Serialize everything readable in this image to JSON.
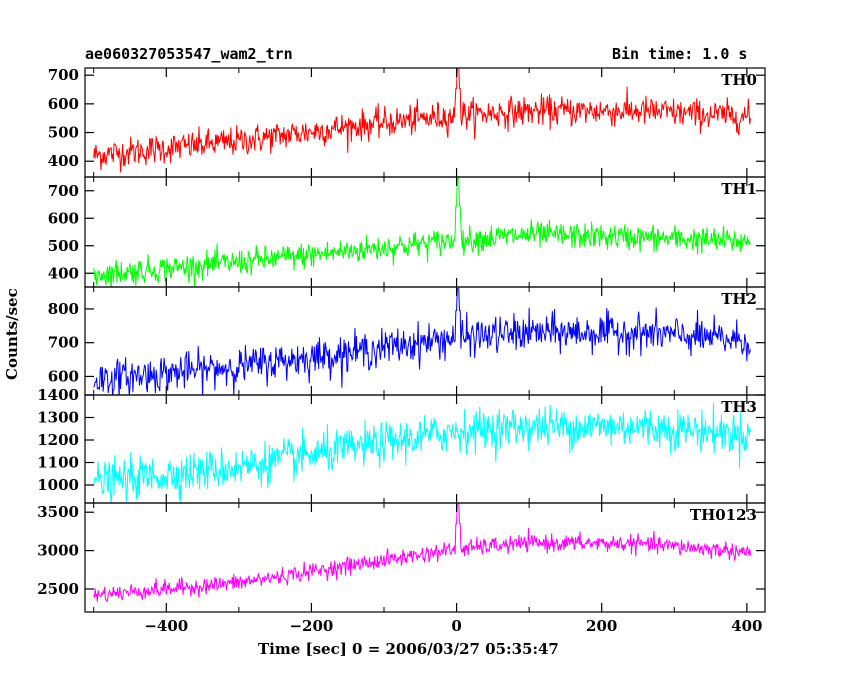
{
  "header": {
    "title": "ae060327053547_wam2_trn",
    "bin_time": "Bin time: 1.0 s"
  },
  "chart_data": {
    "type": "line",
    "xlabel": "Time [sec] 0 = 2006/03/27 05:35:47",
    "ylabel": "Counts/sec",
    "xlim": [
      -512,
      425
    ],
    "x_ticks": [
      -400,
      -200,
      0,
      200,
      400
    ],
    "x_range_data": [
      -500,
      405
    ],
    "grid": false,
    "panels": [
      {
        "name": "TH0",
        "color": "#ff0000",
        "ylim": [
          345,
          725
        ],
        "y_ticks": [
          400,
          500,
          600,
          700
        ],
        "trend": [
          [
            -500,
            420
          ],
          [
            -300,
            470
          ],
          [
            -150,
            520
          ],
          [
            0,
            560
          ],
          [
            100,
            575
          ],
          [
            250,
            575
          ],
          [
            405,
            555
          ]
        ],
        "noise_sd": 26,
        "spike": {
          "x": 2,
          "y": 730
        }
      },
      {
        "name": "TH1",
        "color": "#00ff00",
        "ylim": [
          350,
          750
        ],
        "y_ticks": [
          400,
          500,
          600,
          700
        ],
        "trend": [
          [
            -500,
            395
          ],
          [
            -300,
            440
          ],
          [
            -150,
            480
          ],
          [
            0,
            520
          ],
          [
            100,
            540
          ],
          [
            250,
            530
          ],
          [
            405,
            515
          ]
        ],
        "noise_sd": 24,
        "spike": {
          "x": 2,
          "y": 745
        }
      },
      {
        "name": "TH2",
        "color": "#0000ff",
        "ylim": [
          545,
          865
        ],
        "y_ticks": [
          600,
          700,
          800
        ],
        "trend": [
          [
            -500,
            590
          ],
          [
            -300,
            630
          ],
          [
            -150,
            670
          ],
          [
            0,
            715
          ],
          [
            100,
            730
          ],
          [
            250,
            730
          ],
          [
            405,
            705
          ]
        ],
        "noise_sd": 27,
        "spike": {
          "x": 2,
          "y": 860
        }
      },
      {
        "name": "TH3",
        "color": "#00ffff",
        "ylim": [
          920,
          1400
        ],
        "y_ticks": [
          1000,
          1100,
          1200,
          1300,
          1400
        ],
        "trend": [
          [
            -500,
            1010
          ],
          [
            -300,
            1080
          ],
          [
            -150,
            1160
          ],
          [
            0,
            1240
          ],
          [
            100,
            1260
          ],
          [
            250,
            1260
          ],
          [
            405,
            1225
          ]
        ],
        "noise_sd": 45
      },
      {
        "name": "TH0123",
        "color": "#ff00ff",
        "ylim": [
          2200,
          3620
        ],
        "y_ticks": [
          2500,
          3000,
          3500
        ],
        "trend": [
          [
            -500,
            2420
          ],
          [
            -300,
            2580
          ],
          [
            -150,
            2800
          ],
          [
            0,
            3020
          ],
          [
            100,
            3100
          ],
          [
            250,
            3090
          ],
          [
            405,
            2980
          ]
        ],
        "noise_sd": 55,
        "spike": {
          "x": 2,
          "y": 3620
        }
      }
    ]
  }
}
